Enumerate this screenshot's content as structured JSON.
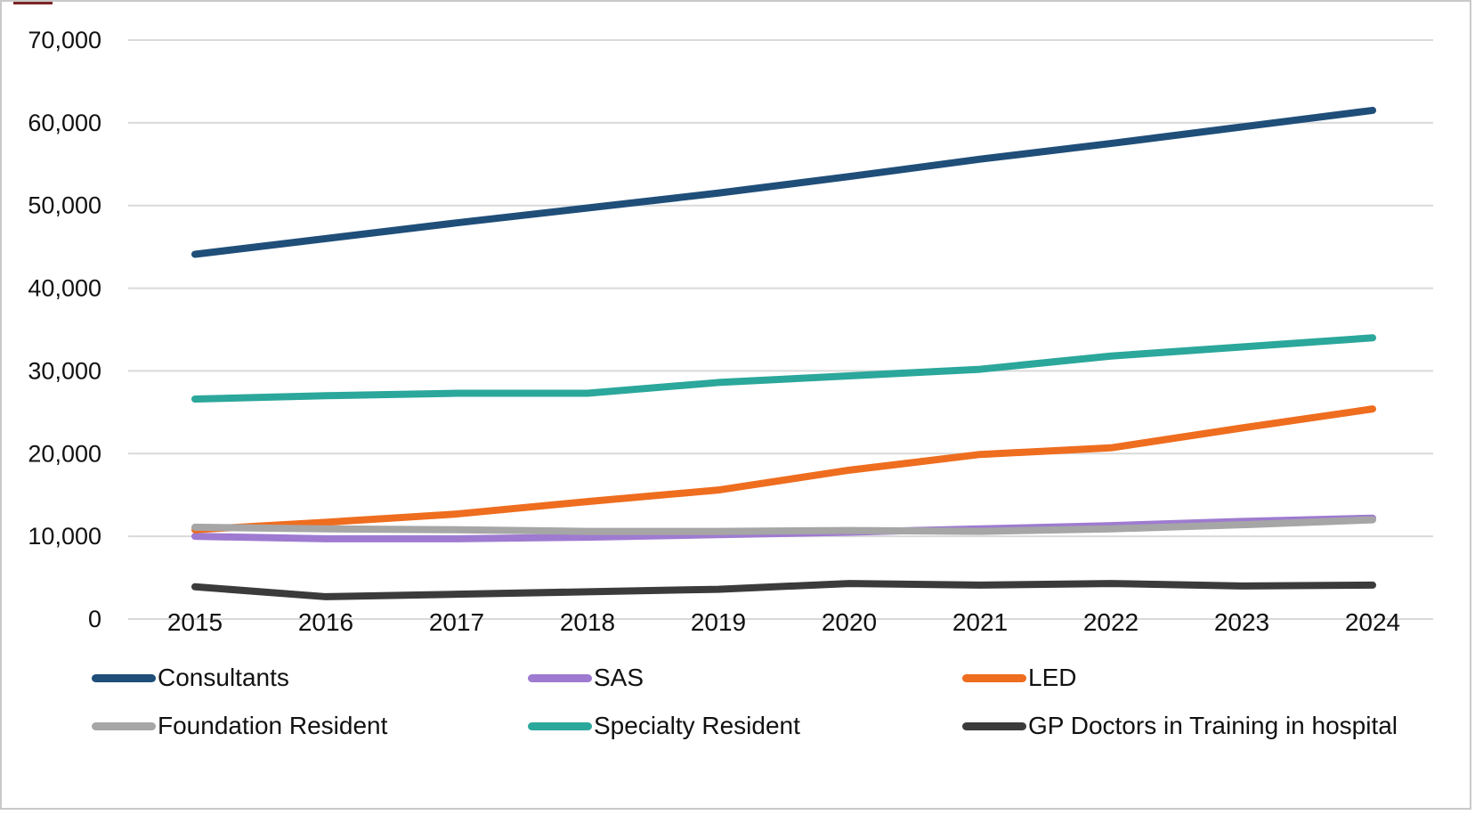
{
  "chart_data": {
    "type": "line",
    "title": "",
    "xlabel": "",
    "ylabel": "",
    "categories": [
      "2015",
      "2016",
      "2017",
      "2018",
      "2019",
      "2020",
      "2021",
      "2022",
      "2023",
      "2024"
    ],
    "series": [
      {
        "name": "Consultants",
        "color": "#1F4E79",
        "values": [
          44100,
          46000,
          47900,
          49700,
          51500,
          53500,
          55600,
          57500,
          59500,
          61500
        ]
      },
      {
        "name": "SAS",
        "color": "#9E7BD0",
        "values": [
          10000,
          9700,
          9700,
          9900,
          10200,
          10500,
          10900,
          11300,
          11800,
          12200
        ]
      },
      {
        "name": "LED",
        "color": "#EE6D1F",
        "values": [
          10800,
          11700,
          12700,
          14200,
          15600,
          18000,
          19900,
          20700,
          23100,
          25400
        ]
      },
      {
        "name": "Foundation Resident",
        "color": "#A6A6A6",
        "values": [
          11100,
          10900,
          10800,
          10600,
          10600,
          10700,
          10600,
          10900,
          11400,
          12000
        ]
      },
      {
        "name": "Specialty Resident",
        "color": "#2BA79B",
        "values": [
          26600,
          27000,
          27300,
          27300,
          28600,
          29400,
          30200,
          31800,
          32900,
          34000
        ]
      },
      {
        "name": "GP Doctors in Training in hospital",
        "color": "#3B3B3B",
        "values": [
          3900,
          2700,
          3000,
          3300,
          3600,
          4300,
          4100,
          4300,
          4000,
          4100
        ]
      }
    ],
    "ylim": [
      0,
      70000
    ],
    "ytick_step": 10000,
    "ytick_values": [
      0,
      10000,
      20000,
      30000,
      40000,
      50000,
      60000,
      70000
    ],
    "ytick_labels": [
      "0",
      "10,000",
      "20,000",
      "30,000",
      "40,000",
      "50,000",
      "60,000",
      "70,000"
    ],
    "grid": "horizontal",
    "legend_position": "bottom",
    "legend_rows": 2,
    "legend_columns": 3
  }
}
